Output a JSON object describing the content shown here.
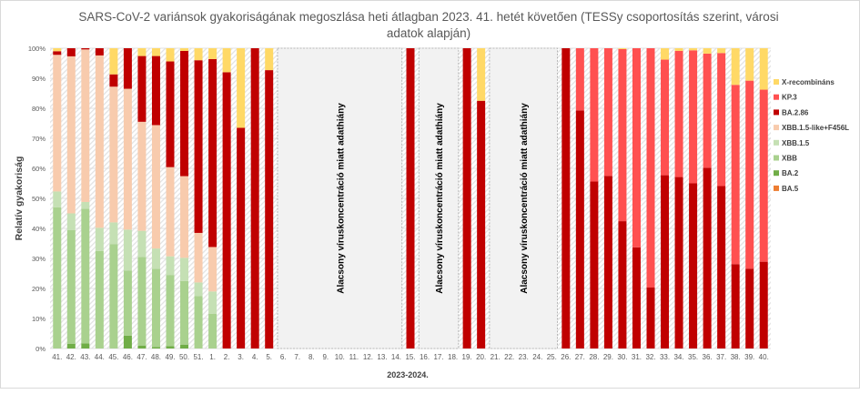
{
  "chart_data": {
    "type": "bar",
    "stacked": true,
    "title": "SARS-CoV-2 variánsok gyakoriságának megoszlása heti átlagban 2023. 41. hetét követően (TESSy csoportosítás szerint, városi adatok alapján)",
    "title_lines": [
      "SARS-CoV-2 variánsok gyakoriságának megoszlása heti átlagban 2023. 41. hetét követően (TESSy csoportosítás szerint, városi",
      "adatok alapján)"
    ],
    "xlabel": "2023-2024.",
    "ylabel": "Relatív gyakoriság",
    "ylim": [
      0,
      100
    ],
    "yticks": [
      "0%",
      "10%",
      "20%",
      "30%",
      "40%",
      "50%",
      "60%",
      "70%",
      "80%",
      "90%",
      "100%"
    ],
    "grid": true,
    "legend_position": "right",
    "categories": [
      "41.",
      "42.",
      "43.",
      "44.",
      "45.",
      "46.",
      "47.",
      "48.",
      "49.",
      "50.",
      "51.",
      "1.",
      "2.",
      "3.",
      "4.",
      "5.",
      "6.",
      "7.",
      "8.",
      "9.",
      "10.",
      "11.",
      "12.",
      "13.",
      "14.",
      "15.",
      "16.",
      "17.",
      "18.",
      "19.",
      "20.",
      "21.",
      "22.",
      "23.",
      "24.",
      "25.",
      "26.",
      "27.",
      "28.",
      "29.",
      "30.",
      "31.",
      "32.",
      "33.",
      "34.",
      "35.",
      "36.",
      "37.",
      "38.",
      "39.",
      "40."
    ],
    "series": [
      {
        "name": "BA.5",
        "color": "#ED7D31",
        "values": [
          0,
          0,
          0,
          0,
          0,
          0,
          0,
          0,
          0,
          0,
          0,
          0,
          0,
          0,
          0,
          0,
          null,
          null,
          null,
          null,
          null,
          null,
          null,
          null,
          null,
          0,
          null,
          null,
          null,
          0,
          0,
          null,
          null,
          null,
          null,
          null,
          0,
          0,
          0,
          0,
          0,
          0,
          0,
          0,
          0,
          0,
          0,
          0,
          0,
          0,
          0
        ]
      },
      {
        "name": "BA.2",
        "color": "#70AD47",
        "values": [
          0,
          1.6,
          1.7,
          0,
          0,
          4.3,
          1,
          0.5,
          0.8,
          1.3,
          0,
          0,
          0,
          0,
          0,
          0,
          null,
          null,
          null,
          null,
          null,
          null,
          null,
          null,
          null,
          0,
          null,
          null,
          null,
          0,
          0,
          null,
          null,
          null,
          null,
          null,
          0,
          0,
          0,
          0,
          0,
          0,
          0,
          0,
          0,
          0,
          0,
          0,
          0,
          0,
          0
        ]
      },
      {
        "name": "XBB",
        "color": "#A9D18E",
        "values": [
          47,
          37.8,
          44.8,
          32.5,
          34.7,
          21.7,
          29.5,
          26,
          23.7,
          21.2,
          17.5,
          11.6,
          0,
          0,
          0,
          0,
          null,
          null,
          null,
          null,
          null,
          null,
          null,
          null,
          null,
          0,
          null,
          null,
          null,
          0,
          0,
          null,
          null,
          null,
          null,
          null,
          0,
          0,
          0,
          0,
          0,
          0,
          0,
          0,
          0,
          0,
          0,
          0,
          0,
          0,
          0
        ]
      },
      {
        "name": "XBB.1.5",
        "color": "#C5E0B4",
        "values": [
          5.3,
          5.6,
          2.3,
          7.7,
          7.3,
          13.6,
          8.7,
          6.8,
          6.2,
          7.7,
          4.5,
          7.4,
          0,
          0,
          0,
          0,
          null,
          null,
          null,
          null,
          null,
          null,
          null,
          null,
          null,
          0,
          null,
          null,
          null,
          0,
          0,
          null,
          null,
          null,
          null,
          null,
          0,
          0,
          0,
          0,
          0,
          0,
          0,
          0,
          0,
          0,
          0,
          0,
          0,
          0,
          0
        ]
      },
      {
        "name": "XBB.1.5-like+F456L",
        "color": "#F8CBAD",
        "values": [
          45.5,
          52.3,
          50.8,
          57.4,
          45.2,
          46.9,
          36.3,
          41.1,
          29.7,
          27.2,
          16.5,
          14.8,
          0,
          0,
          0,
          0,
          null,
          null,
          null,
          null,
          null,
          null,
          null,
          null,
          null,
          0,
          null,
          null,
          null,
          0,
          0,
          null,
          null,
          null,
          null,
          null,
          0,
          0,
          0,
          0,
          0,
          0,
          0,
          0,
          0,
          0,
          0,
          0,
          0,
          0,
          0
        ]
      },
      {
        "name": "BA.2.86",
        "color": "#C00000",
        "values": [
          1.2,
          2.7,
          0.4,
          2.4,
          4.1,
          13.5,
          21.9,
          23,
          35.2,
          41.7,
          57.5,
          62.6,
          92,
          73.5,
          100,
          92.7,
          null,
          null,
          null,
          null,
          null,
          null,
          null,
          null,
          null,
          100,
          null,
          null,
          null,
          100,
          82.5,
          null,
          null,
          null,
          null,
          null,
          100,
          79.3,
          55.6,
          57.5,
          42.4,
          33.7,
          20.3,
          57.7,
          57.1,
          55,
          60.2,
          54.1,
          28.1,
          26.6,
          28.9
        ]
      },
      {
        "name": "KP.3",
        "color": "#FF5050",
        "values": [
          0,
          0,
          0,
          0,
          0,
          0,
          0,
          0,
          0,
          0,
          0,
          0,
          0,
          0,
          0,
          0,
          null,
          null,
          null,
          null,
          null,
          null,
          null,
          null,
          null,
          0,
          null,
          null,
          null,
          0,
          0,
          null,
          null,
          null,
          null,
          null,
          0,
          20.7,
          44.4,
          42.5,
          57.3,
          66.3,
          79.7,
          38.5,
          42,
          44.3,
          38,
          44.3,
          59.7,
          62.6,
          57.3
        ]
      },
      {
        "name": "X-recombináns",
        "color": "#FFD966",
        "values": [
          1,
          0,
          0,
          0,
          8.7,
          0,
          2.6,
          2.6,
          4.4,
          0.9,
          4,
          3.6,
          8,
          26.5,
          0,
          7.3,
          null,
          null,
          null,
          null,
          null,
          null,
          null,
          null,
          null,
          0,
          null,
          null,
          null,
          0,
          17.5,
          null,
          null,
          null,
          null,
          null,
          0,
          0,
          0,
          0,
          0.3,
          0,
          0,
          3.8,
          0.9,
          0.7,
          1.8,
          1.6,
          12.2,
          10.8,
          13.8
        ]
      }
    ],
    "annotations": [
      {
        "from": "6.",
        "to": "14.",
        "label": "Alacsony víruskoncentráció miatt adathiány"
      },
      {
        "from": "16.",
        "to": "18.",
        "label": "Alacsony víruskoncentráció miatt adathiány"
      },
      {
        "from": "21.",
        "to": "25.",
        "label": "Alacsony víruskoncentráció miatt adathiány"
      }
    ]
  }
}
